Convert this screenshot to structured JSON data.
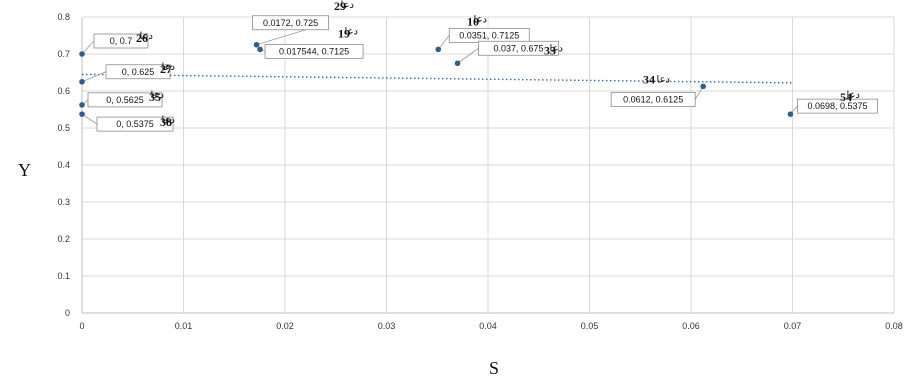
{
  "chart_data": {
    "type": "scatter",
    "xlabel": "S",
    "ylabel": "Y",
    "xlim": [
      0,
      0.08
    ],
    "ylim": [
      0,
      0.8
    ],
    "x_ticks": [
      "0",
      "0.01",
      "0.02",
      "0.03",
      "0.04",
      "0.05",
      "0.06",
      "0.07",
      "0.08"
    ],
    "y_ticks": [
      "0",
      "0.1",
      "0.2",
      "0.3",
      "0.4",
      "0.5",
      "0.6",
      "0.7",
      "0.8"
    ],
    "grid": true,
    "marker_color": "#2e5f8a",
    "trendline": {
      "style": "dotted",
      "color": "#2e6aa8",
      "x": [
        0,
        0.07
      ],
      "y": [
        0.645,
        0.622
      ]
    },
    "points": [
      {
        "x": 0,
        "y": 0.7,
        "value_label": "0, 0.7",
        "name": "دعا",
        "num": "26"
      },
      {
        "x": 0,
        "y": 0.625,
        "value_label": "0, 0.625",
        "name": "دعا",
        "num": "27"
      },
      {
        "x": 0,
        "y": 0.5625,
        "value_label": "0, 0.5625",
        "name": "دعا",
        "num": "35"
      },
      {
        "x": 0,
        "y": 0.5375,
        "value_label": "0, 0.5375",
        "name": "دعا",
        "num": "38"
      },
      {
        "x": 0.0172,
        "y": 0.725,
        "value_label": "0.0172, 0.725",
        "name": "دعا",
        "num": "29"
      },
      {
        "x": 0.017544,
        "y": 0.7125,
        "value_label": "0.017544, 0.7125",
        "name": "دعا",
        "num": "19"
      },
      {
        "x": 0.0351,
        "y": 0.7125,
        "value_label": "0.0351, 0.7125",
        "name": "دعا",
        "num": "10"
      },
      {
        "x": 0.037,
        "y": 0.675,
        "value_label": "0.037, 0.675",
        "name": "دعا",
        "num": "33"
      },
      {
        "x": 0.0612,
        "y": 0.6125,
        "value_label": "0.0612, 0.6125",
        "name": "دعا",
        "num": "34"
      },
      {
        "x": 0.0698,
        "y": 0.5375,
        "value_label": "0.0698, 0.5375",
        "name": "دعا",
        "num": "54"
      }
    ]
  }
}
